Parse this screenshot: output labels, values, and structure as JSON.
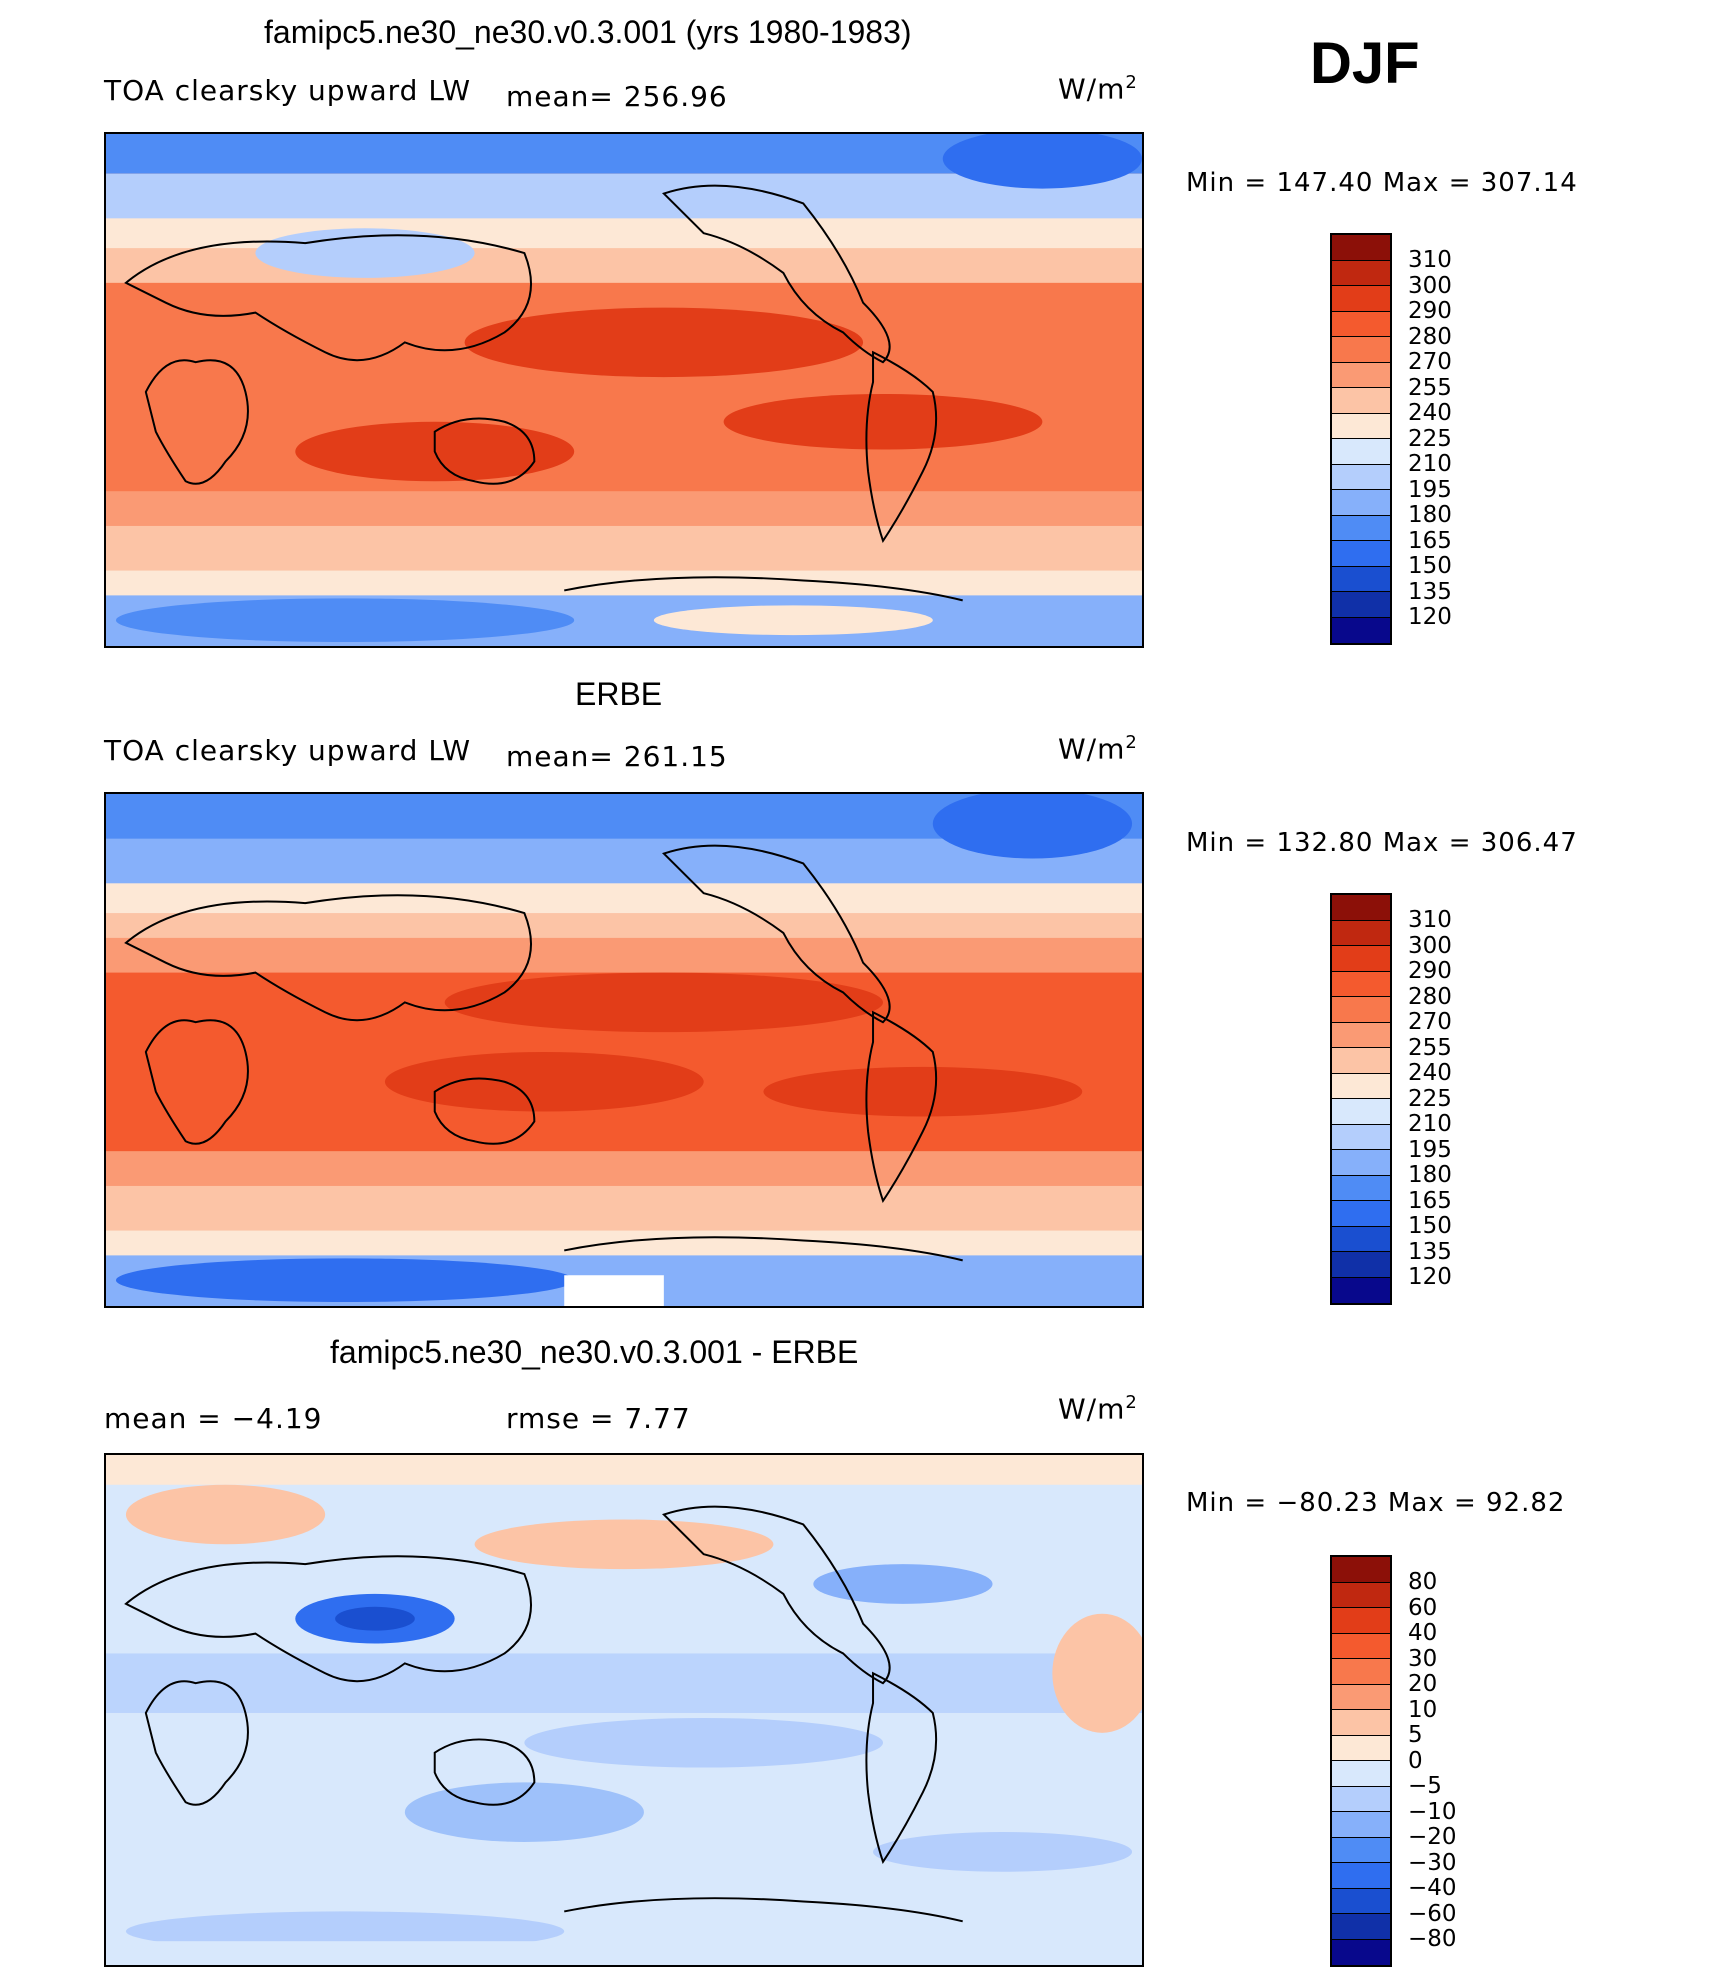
{
  "season": "DJF",
  "units": "W/m",
  "units_sup": "2",
  "colors": {
    "absolute": [
      "#08088c",
      "#1030a8",
      "#1a4fd0",
      "#2f6ef0",
      "#4f8cf5",
      "#86b0fa",
      "#b4cefc",
      "#d8e8fc",
      "#fde8d6",
      "#fcc4a6",
      "#fa9a74",
      "#f8784c",
      "#f45a2e",
      "#e23d18",
      "#c02810",
      "#8c1008"
    ],
    "difference": [
      "#08088c",
      "#1030a8",
      "#1a4fd0",
      "#2f6ef0",
      "#4f8cf5",
      "#86b0fa",
      "#b4cefc",
      "#d8e8fc",
      "#fde8d6",
      "#fcc4a6",
      "#fa9a74",
      "#f8784c",
      "#f45a2e",
      "#e23d18",
      "#c02810",
      "#8c1008"
    ]
  },
  "panels": [
    {
      "title": "famipc5.ne30_ne30.v0.3.001 (yrs 1980-1983)",
      "left_label": "TOA clearsky upward LW",
      "mid_label": "mean= 256.96",
      "min_max": "Min  =  147.40  Max  =  307.14",
      "colorbar_levels": [
        "310",
        "300",
        "290",
        "280",
        "270",
        "255",
        "240",
        "225",
        "210",
        "195",
        "180",
        "165",
        "150",
        "135",
        "120"
      ],
      "kind": "model"
    },
    {
      "title": "ERBE",
      "left_label": "TOA clearsky upward LW",
      "mid_label": "mean= 261.15",
      "min_max": "Min  =  132.80  Max  =  306.47",
      "colorbar_levels": [
        "310",
        "300",
        "290",
        "280",
        "270",
        "255",
        "240",
        "225",
        "210",
        "195",
        "180",
        "165",
        "150",
        "135",
        "120"
      ],
      "kind": "obs"
    },
    {
      "title": "famipc5.ne30_ne30.v0.3.001 - ERBE",
      "left_label": "mean  =    −4.19",
      "mid_label": "rmse  =     7.77",
      "min_max": "Min  =  −80.23  Max  =   92.82",
      "colorbar_levels": [
        "80",
        "60",
        "40",
        "30",
        "20",
        "10",
        "5",
        "0",
        "−5",
        "−10",
        "−20",
        "−30",
        "−40",
        "−60",
        "−80"
      ],
      "kind": "diff"
    }
  ]
}
